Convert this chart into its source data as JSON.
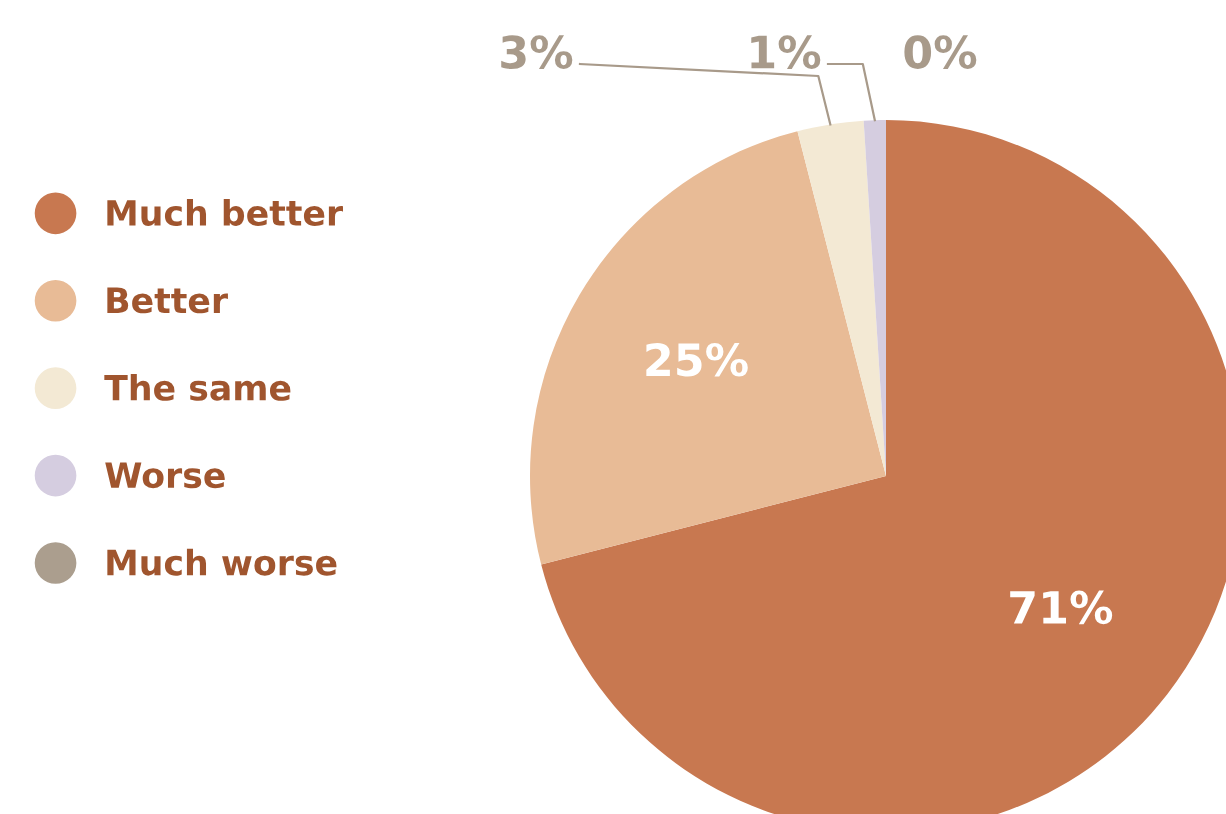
{
  "chart_data": {
    "type": "pie",
    "categories": [
      "Much better",
      "Better",
      "The same",
      "Worse",
      "Much worse"
    ],
    "values": [
      71,
      25,
      3,
      1,
      0
    ],
    "value_labels": [
      "71%",
      "25%",
      "3%",
      "1%",
      "0%"
    ],
    "colors": [
      "#c87850",
      "#e8bb96",
      "#f3e9d4",
      "#d5cde0",
      "#ab9e8e"
    ],
    "legend": "left"
  }
}
